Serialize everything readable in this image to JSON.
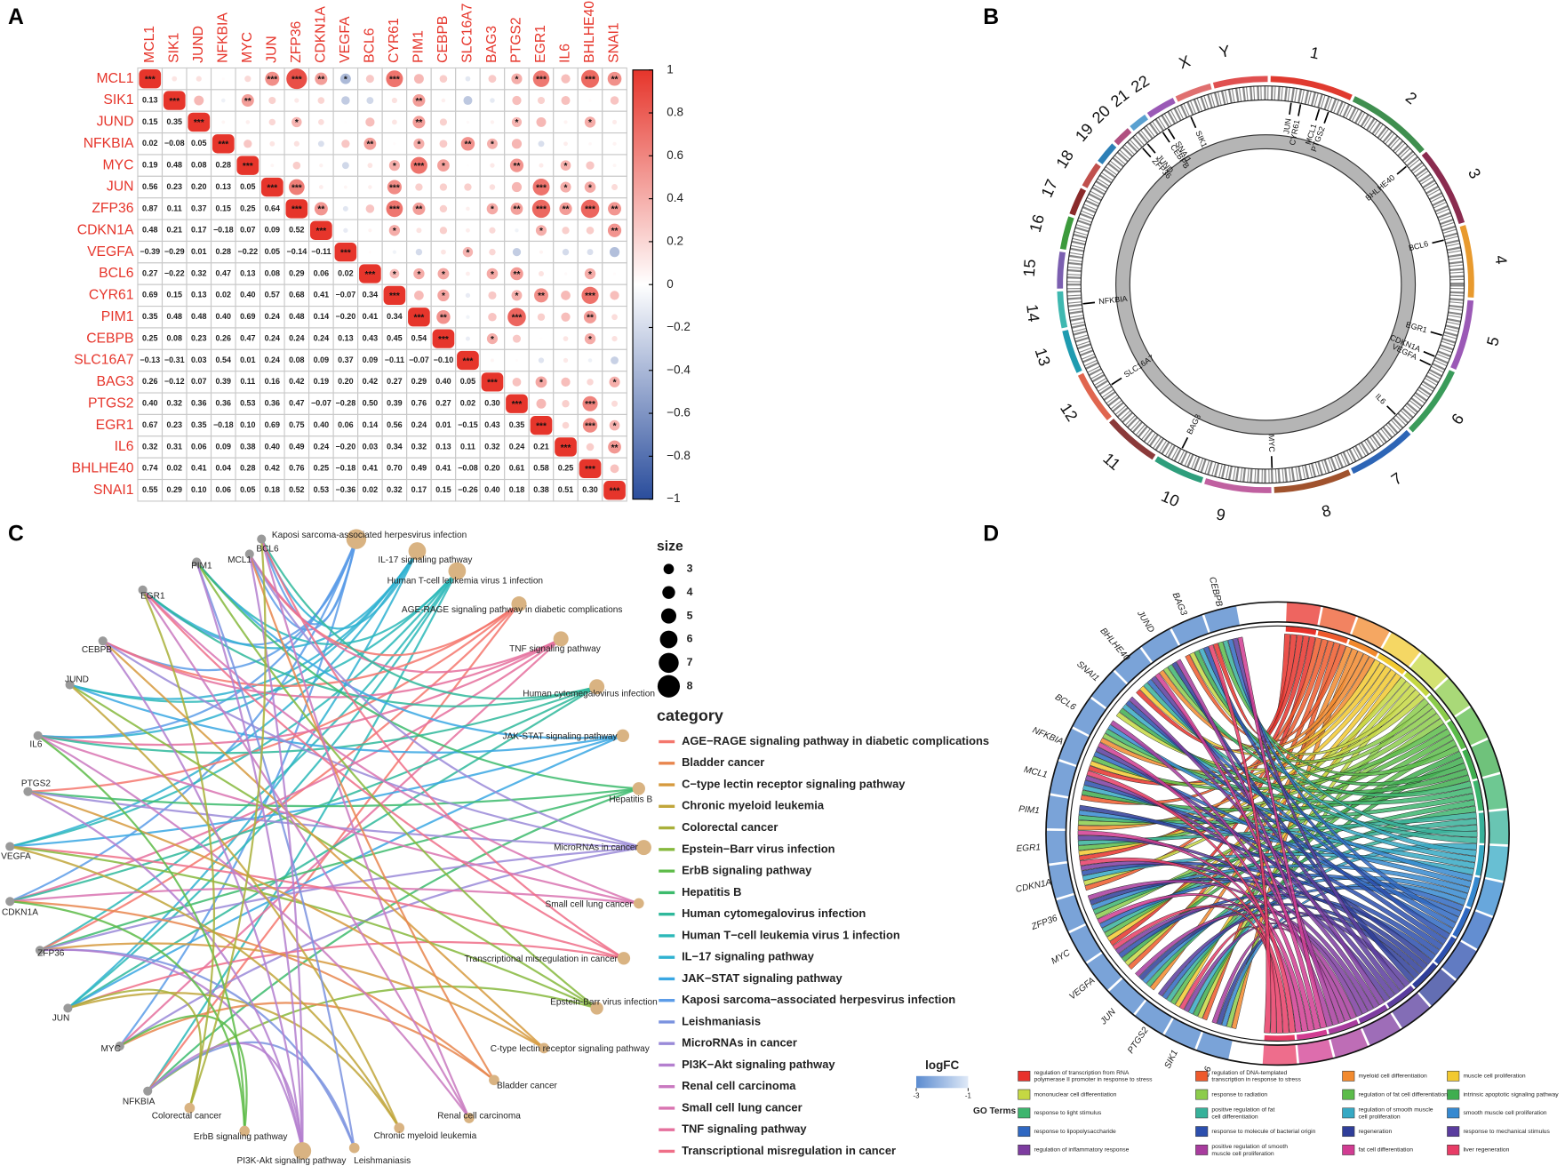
{
  "panel_labels": [
    "A",
    "B",
    "C",
    "D"
  ],
  "correlation": {
    "genes": [
      "MCL1",
      "SIK1",
      "JUND",
      "NFKBIA",
      "MYC",
      "JUN",
      "ZFP36",
      "CDKN1A",
      "VEGFA",
      "BCL6",
      "CYR61",
      "PIM1",
      "CEBPB",
      "SLC16A7",
      "BAG3",
      "PTGS2",
      "EGR1",
      "IL6",
      "BHLHE40",
      "SNAI1"
    ],
    "lower": [
      [
        0.13
      ],
      [
        0.15,
        0.35
      ],
      [
        0.02,
        -0.08,
        0.05
      ],
      [
        0.19,
        0.48,
        0.08,
        0.28
      ],
      [
        0.56,
        0.23,
        0.2,
        0.13,
        0.05
      ],
      [
        0.87,
        0.11,
        0.37,
        0.15,
        0.25,
        0.64
      ],
      [
        0.48,
        0.21,
        0.17,
        -0.18,
        0.07,
        0.09,
        0.52
      ],
      [
        -0.39,
        -0.29,
        0.01,
        0.28,
        -0.22,
        0.05,
        -0.14,
        -0.11
      ],
      [
        0.27,
        -0.22,
        0.32,
        0.47,
        0.13,
        0.08,
        0.29,
        0.06,
        0.02
      ],
      [
        0.69,
        0.15,
        0.13,
        0.02,
        0.4,
        0.57,
        0.68,
        0.41,
        -0.07,
        0.34
      ],
      [
        0.35,
        0.48,
        0.48,
        0.4,
        0.69,
        0.24,
        0.48,
        0.14,
        -0.2,
        0.41,
        0.34
      ],
      [
        0.25,
        0.08,
        0.23,
        0.26,
        0.47,
        0.24,
        0.24,
        0.24,
        0.13,
        0.43,
        0.45,
        0.54
      ],
      [
        -0.13,
        -0.31,
        0.03,
        0.54,
        0.01,
        0.24,
        0.08,
        0.09,
        0.37,
        0.09,
        -0.11,
        -0.07,
        -0.1
      ],
      [
        0.26,
        -0.12,
        0.07,
        0.39,
        0.11,
        0.16,
        0.42,
        0.19,
        0.2,
        0.42,
        0.27,
        0.29,
        0.4,
        0.05
      ],
      [
        0.4,
        0.32,
        0.36,
        0.36,
        0.53,
        0.36,
        0.47,
        -0.07,
        -0.28,
        0.5,
        0.39,
        0.76,
        0.27,
        0.02,
        0.3
      ],
      [
        0.67,
        0.23,
        0.35,
        -0.18,
        0.1,
        0.69,
        0.75,
        0.4,
        0.06,
        0.14,
        0.56,
        0.24,
        0.01,
        -0.15,
        0.43,
        0.35
      ],
      [
        0.32,
        0.31,
        0.06,
        0.09,
        0.38,
        0.4,
        0.49,
        0.24,
        -0.2,
        0.03,
        0.34,
        0.32,
        0.13,
        0.11,
        0.32,
        0.24,
        0.21
      ],
      [
        0.74,
        0.02,
        0.41,
        0.04,
        0.28,
        0.42,
        0.76,
        0.25,
        -0.18,
        0.41,
        0.7,
        0.49,
        0.41,
        -0.08,
        0.2,
        0.61,
        0.58,
        0.25
      ],
      [
        0.55,
        0.29,
        0.1,
        0.06,
        0.05,
        0.18,
        0.52,
        0.53,
        -0.36,
        0.02,
        0.32,
        0.17,
        0.15,
        -0.26,
        0.4,
        0.18,
        0.38,
        0.51,
        0.3
      ]
    ],
    "lower_labels": [
      [
        "0.13"
      ],
      [
        "0.15",
        "0.35"
      ],
      [
        "0.02",
        "−0.08",
        "0.05"
      ],
      [
        "0.19",
        "0.48",
        "0.08",
        "0.28"
      ],
      [
        "0.56",
        "0.23",
        "0.20",
        "0.13",
        "0.05"
      ],
      [
        "0.87",
        "0.11",
        "0.37",
        "0.15",
        "0.25",
        "0.64"
      ],
      [
        "0.48",
        "0.21",
        "0.17",
        "−0.18",
        "0.07",
        "0.09",
        "0.52"
      ],
      [
        "−0.39",
        "−0.29",
        "0.01",
        "0.28",
        "−0.22",
        "0.05",
        "−0.14",
        "−0.11"
      ],
      [
        "0.27",
        "−0.22",
        "0.32",
        "0.47",
        "0.13",
        "0.08",
        "0.29",
        "0.06",
        "0.02"
      ],
      [
        "0.69",
        "0.15",
        "0.13",
        "0.02",
        "0.40",
        "0.57",
        "0.68",
        "0.41",
        "−0.07",
        "0.34"
      ],
      [
        "0.35",
        "0.48",
        "0.48",
        "0.40",
        "0.69",
        "0.24",
        "0.48",
        "0.14",
        "−0.20",
        "0.41",
        "0.34"
      ],
      [
        "0.25",
        "0.08",
        "0.23",
        "0.26",
        "0.47",
        "0.24",
        "0.24",
        "0.24",
        "0.13",
        "0.43",
        "0.45",
        "0.54"
      ],
      [
        "−0.13",
        "−0.31",
        "0.03",
        "0.54",
        "0.01",
        "0.24",
        "0.08",
        "0.09",
        "0.37",
        "0.09",
        "−0.11",
        "−0.07",
        "−0.10"
      ],
      [
        "0.26",
        "−0.12",
        "0.07",
        "0.39",
        "0.11",
        "0.16",
        "0.42",
        "0.19",
        "0.20",
        "0.42",
        "0.27",
        "0.29",
        "0.40",
        "0.05"
      ],
      [
        "0.40",
        "0.32",
        "0.36",
        "0.36",
        "0.53",
        "0.36",
        "0.47",
        "−0.07",
        "−0.28",
        "0.50",
        "0.39",
        "0.76",
        "0.27",
        "0.02",
        "0.30"
      ],
      [
        "0.67",
        "0.23",
        "0.35",
        "−0.18",
        "0.10",
        "0.69",
        "0.75",
        "0.40",
        "0.06",
        "0.14",
        "0.56",
        "0.24",
        "0.01",
        "−0.15",
        "0.43",
        "0.35"
      ],
      [
        "0.32",
        "0.31",
        "0.06",
        "0.09",
        "0.38",
        "0.40",
        "0.49",
        "0.24",
        "−0.20",
        "0.03",
        "0.34",
        "0.32",
        "0.13",
        "0.11",
        "0.32",
        "0.24",
        "0.21"
      ],
      [
        "0.74",
        "0.02",
        "0.41",
        "0.04",
        "0.28",
        "0.42",
        "0.76",
        "0.25",
        "−0.18",
        "0.41",
        "0.70",
        "0.49",
        "0.41",
        "−0.08",
        "0.20",
        "0.61",
        "0.58",
        "0.25"
      ],
      [
        "0.55",
        "0.29",
        "0.10",
        "0.06",
        "0.05",
        "0.18",
        "0.52",
        "0.53",
        "−0.36",
        "0.02",
        "0.32",
        "0.17",
        "0.15",
        "−0.26",
        "0.40",
        "0.18",
        "0.38",
        "0.51",
        "0.30"
      ]
    ],
    "stars": [
      [
        "***",
        null,
        null,
        null,
        null,
        "***",
        "***",
        "**",
        "*",
        null,
        "***",
        null,
        null,
        null,
        null,
        "*",
        "***",
        null,
        "***",
        "**"
      ],
      [
        "***",
        null,
        null,
        "**",
        null,
        null,
        null,
        null,
        null,
        null,
        "**",
        null,
        null,
        null,
        null,
        null,
        null,
        null,
        null
      ],
      [
        "***",
        null,
        null,
        null,
        "*",
        null,
        null,
        null,
        null,
        "**",
        null,
        null,
        null,
        "*",
        null,
        null,
        "*",
        null
      ],
      [
        "***",
        null,
        null,
        null,
        null,
        null,
        "**",
        null,
        "*",
        null,
        "**",
        "*",
        null,
        null,
        null,
        null,
        null
      ],
      [
        "***",
        null,
        null,
        null,
        null,
        null,
        "*",
        "***",
        "*",
        null,
        null,
        "**",
        null,
        "*",
        null,
        null
      ],
      [
        "***",
        "***",
        null,
        null,
        null,
        "***",
        null,
        null,
        null,
        null,
        null,
        "***",
        "*",
        "*",
        null
      ],
      [
        "***",
        "**",
        null,
        null,
        "***",
        "**",
        null,
        null,
        "*",
        "**",
        "***",
        "**",
        "***",
        "**"
      ],
      [
        "***",
        null,
        null,
        "*",
        null,
        null,
        null,
        null,
        null,
        "*",
        null,
        null,
        "**"
      ],
      [
        "***",
        null,
        null,
        null,
        null,
        "*",
        null,
        null,
        null,
        null,
        null,
        null
      ],
      [
        "***",
        "*",
        "*",
        "*",
        null,
        "*",
        "**",
        null,
        null,
        "*",
        null
      ],
      [
        "***",
        null,
        "*",
        null,
        null,
        "*",
        "**",
        null,
        "***",
        null
      ],
      [
        "***",
        "**",
        null,
        null,
        "***",
        null,
        null,
        "**",
        null
      ],
      [
        "***",
        null,
        "*",
        null,
        null,
        null,
        "*",
        null
      ],
      [
        "***",
        null,
        null,
        null,
        null,
        null,
        null
      ],
      [
        "***",
        null,
        "*",
        null,
        null,
        "*"
      ],
      [
        "***",
        null,
        null,
        "***",
        null
      ],
      [
        "***",
        null,
        "***",
        "*"
      ],
      [
        "***",
        null,
        "**"
      ],
      [
        "***",
        null
      ],
      [
        "***"
      ]
    ],
    "positive_color": "#e6352b",
    "negative_color": "#2a4d9c",
    "colorbar_lim": [
      -1,
      1
    ],
    "colorbar_ticks": [
      1,
      0.8,
      0.6,
      0.4,
      0.2,
      0,
      {
        "value": -0.2,
        "label": "−0.2"
      },
      {
        "value": -0.4,
        "label": "−0.4"
      },
      {
        "value": -0.6,
        "label": "−0.6"
      },
      {
        "value": -0.8,
        "label": "−0.8"
      },
      {
        "value": -1,
        "label": "−1"
      }
    ]
  },
  "circos": {
    "chromosomes": [
      "1",
      "2",
      "3",
      "4",
      "5",
      "6",
      "7",
      "8",
      "9",
      "10",
      "11",
      "12",
      "13",
      "14",
      "15",
      "16",
      "17",
      "18",
      "19",
      "20",
      "21",
      "22",
      "X",
      "Y"
    ],
    "genes": [
      "JUN",
      "CYR61",
      "MCL1",
      "PTGS2",
      "BHLHE40",
      "BCL6",
      "EGR1",
      "CDKN1A",
      "VEGFA",
      "IL6",
      "MYC",
      "BAG3",
      "SLC16A7",
      "NFKBIA",
      "ZFP36",
      "JUND",
      "CEBPB",
      "SNAI1",
      "SIK1"
    ]
  },
  "network": {
    "genes": [
      "BCL6",
      "MCL1",
      "PIM1",
      "EGR1",
      "CEBPB",
      "JUND",
      "IL6",
      "PTGS2",
      "VEGFA",
      "CDKN1A",
      "ZFP36",
      "JUN",
      "MYC",
      "NFKBIA"
    ],
    "pathways": [
      {
        "name": "Kaposi sarcoma-associated herpesvirus infection",
        "size": 7
      },
      {
        "name": "IL-17 signaling pathway",
        "size": 6
      },
      {
        "name": "Human T-cell leukemia virus 1 infection",
        "size": 6
      },
      {
        "name": "AGE-RAGE signaling pathway in diabetic complications",
        "size": 5
      },
      {
        "name": "TNF signaling pathway",
        "size": 5
      },
      {
        "name": "Human cytomegalovirus infection",
        "size": 5
      },
      {
        "name": "JAK-STAT signaling pathway",
        "size": 4
      },
      {
        "name": "Hepatitis B",
        "size": 4
      },
      {
        "name": "MicroRNAs in cancer",
        "size": 5
      },
      {
        "name": "Small cell lung cancer",
        "size": 3
      },
      {
        "name": "Transcriptional misregulation in cancer",
        "size": 4
      },
      {
        "name": "Epstein-Barr virus infection",
        "size": 4
      },
      {
        "name": "C-type lectin receptor signaling pathway",
        "size": 3
      },
      {
        "name": "Bladder cancer",
        "size": 3
      },
      {
        "name": "Renal cell carcinoma",
        "size": 3
      },
      {
        "name": "Chronic myeloid leukemia",
        "size": 3
      },
      {
        "name": "Leishmaniasis",
        "size": 3
      },
      {
        "name": "PI3K-Akt signaling pathway",
        "size": 6
      },
      {
        "name": "ErbB signaling pathway",
        "size": 3
      },
      {
        "name": "Colorectal cancer",
        "size": 3
      }
    ],
    "size_title": "size",
    "size_values": [
      3,
      4,
      5,
      6,
      7,
      8
    ],
    "category_title": "category",
    "categories": [
      {
        "name": "AGE−RAGE signaling pathway in diabetic complications",
        "color": "#f4776d"
      },
      {
        "name": "Bladder cancer",
        "color": "#e8864e"
      },
      {
        "name": "C−type lectin receptor signaling pathway",
        "color": "#d69a3e"
      },
      {
        "name": "Chronic myeloid leukemia",
        "color": "#c1a63b"
      },
      {
        "name": "Colorectal cancer",
        "color": "#a9b03a"
      },
      {
        "name": "Epstein−Barr virus infection",
        "color": "#86b83d"
      },
      {
        "name": "ErbB signaling pathway",
        "color": "#5dbb48"
      },
      {
        "name": "Hepatitis B",
        "color": "#3dbb6d"
      },
      {
        "name": "Human cytomegalovirus infection",
        "color": "#2fb89b"
      },
      {
        "name": "Human T−cell leukemia virus 1 infection",
        "color": "#2cb8b8"
      },
      {
        "name": "IL−17 signaling pathway",
        "color": "#2fb2d1"
      },
      {
        "name": "JAK−STAT signaling pathway",
        "color": "#3aa7e3"
      },
      {
        "name": "Kaposi sarcoma−associated herpesvirus infection",
        "color": "#5c9ce8"
      },
      {
        "name": "Leishmaniasis",
        "color": "#7a92df"
      },
      {
        "name": "MicroRNAs in cancer",
        "color": "#9a8ad8"
      },
      {
        "name": "PI3K−Akt signaling pathway",
        "color": "#b47fcf"
      },
      {
        "name": "Renal cell carcinoma",
        "color": "#c979c0"
      },
      {
        "name": "Small cell lung cancer",
        "color": "#d974b1"
      },
      {
        "name": "TNF signaling pathway",
        "color": "#e5709d"
      },
      {
        "name": "Transcriptional misregulation in cancer",
        "color": "#ef6f88"
      }
    ]
  },
  "chord": {
    "genes": [
      "CEBPB",
      "BAG3",
      "JUND",
      "BHLHE40",
      "SNAI1",
      "BCL6",
      "NFKBIA",
      "MCL1",
      "PIM1",
      "EGR1",
      "CDKN1A",
      "ZFP36",
      "MYC",
      "VEGFA",
      "JUN",
      "PTGS2",
      "SIK1",
      "IL6"
    ],
    "logfc_title": "logFC",
    "logfc_ticks": [
      -3,
      -1
    ],
    "go_title": "GO Terms",
    "go_terms": [
      {
        "name": "regulation of transcription from RNA polymerase II promoter in response to stress",
        "color": "#e8322b"
      },
      {
        "name": "regulation of DNA-templated transcription in response to stress",
        "color": "#ee5a2c"
      },
      {
        "name": "myeloid cell differentiation",
        "color": "#f28a2e"
      },
      {
        "name": "muscle cell proliferation",
        "color": "#f2c930"
      },
      {
        "name": "mononuclear cell differentiation",
        "color": "#c5d843"
      },
      {
        "name": "response to radiation",
        "color": "#8ccc4b"
      },
      {
        "name": "regulation of fat cell differentiation",
        "color": "#5cbc4a"
      },
      {
        "name": "intrinsic apoptotic signaling pathway",
        "color": "#3fae4f"
      },
      {
        "name": "response to light stimulus",
        "color": "#3db56e"
      },
      {
        "name": "positive regulation of fat cell differentiation",
        "color": "#37b19a"
      },
      {
        "name": "regulation of smooth muscle cell proliferation",
        "color": "#36a9c4"
      },
      {
        "name": "smooth muscle cell proliferation",
        "color": "#3689d0"
      },
      {
        "name": "response to lipopolysaccharide",
        "color": "#2f68c2"
      },
      {
        "name": "response to molecule of bacterial origin",
        "color": "#2c4fae"
      },
      {
        "name": "regeneration",
        "color": "#2f3e9a"
      },
      {
        "name": "response to mechanical stimulus",
        "color": "#5a3c9e"
      },
      {
        "name": "regulation of inflammatory response",
        "color": "#7d3ca0"
      },
      {
        "name": "positive regulation of smooth muscle cell proliferation",
        "color": "#a83c9e"
      },
      {
        "name": "fat cell differentiation",
        "color": "#d13c92"
      },
      {
        "name": "liver regeneration",
        "color": "#e83c66"
      }
    ]
  }
}
